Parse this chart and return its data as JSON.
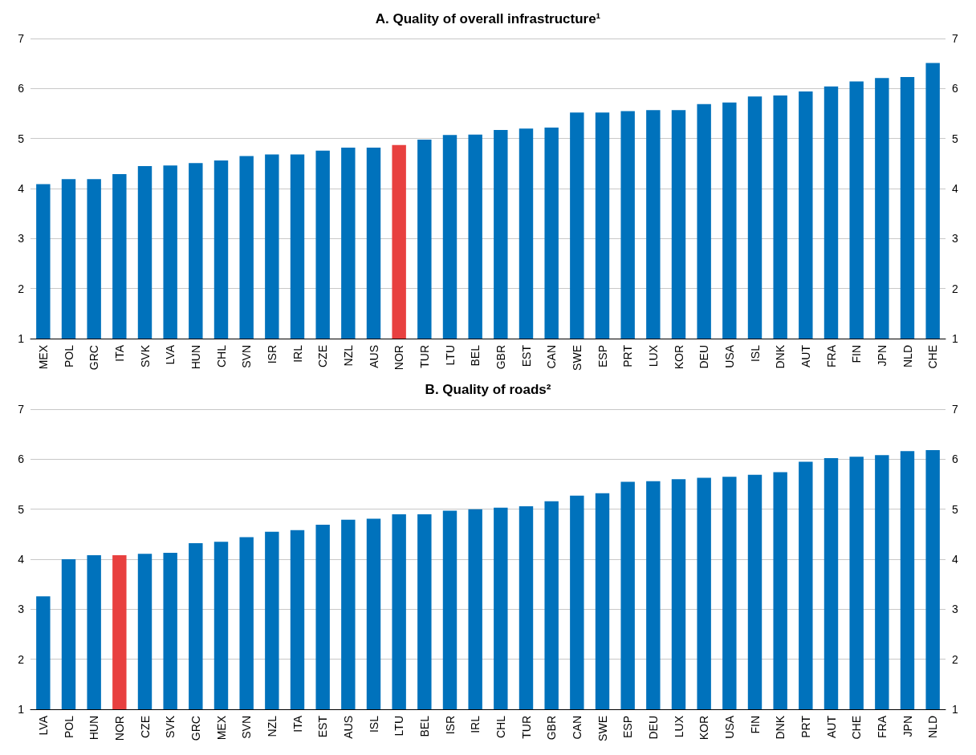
{
  "chart_data": [
    {
      "type": "bar",
      "title": "A. Quality of overall infrastructure¹",
      "categories": [
        "MEX",
        "POL",
        "GRC",
        "ITA",
        "SVK",
        "LVA",
        "HUN",
        "CHL",
        "SVN",
        "ISR",
        "IRL",
        "CZE",
        "NZL",
        "AUS",
        "NOR",
        "TUR",
        "LTU",
        "BEL",
        "GBR",
        "EST",
        "CAN",
        "SWE",
        "ESP",
        "PRT",
        "LUX",
        "KOR",
        "DEU",
        "USA",
        "ISL",
        "DNK",
        "AUT",
        "FRA",
        "FIN",
        "JPN",
        "NLD",
        "CHE"
      ],
      "values": [
        4.09,
        4.19,
        4.19,
        4.29,
        4.45,
        4.46,
        4.51,
        4.56,
        4.65,
        4.68,
        4.68,
        4.76,
        4.82,
        4.82,
        4.87,
        4.98,
        5.07,
        5.08,
        5.17,
        5.2,
        5.22,
        5.52,
        5.52,
        5.55,
        5.57,
        5.57,
        5.69,
        5.72,
        5.84,
        5.86,
        5.94,
        6.04,
        6.14,
        6.21,
        6.23,
        6.51
      ],
      "colors": [
        "#0072bc",
        "#0072bc",
        "#0072bc",
        "#0072bc",
        "#0072bc",
        "#0072bc",
        "#0072bc",
        "#0072bc",
        "#0072bc",
        "#0072bc",
        "#0072bc",
        "#0072bc",
        "#0072bc",
        "#0072bc",
        "#e8403f",
        "#0072bc",
        "#0072bc",
        "#0072bc",
        "#0072bc",
        "#0072bc",
        "#0072bc",
        "#0072bc",
        "#0072bc",
        "#0072bc",
        "#0072bc",
        "#0072bc",
        "#0072bc",
        "#0072bc",
        "#0072bc",
        "#0072bc",
        "#0072bc",
        "#0072bc",
        "#0072bc",
        "#0072bc",
        "#0072bc",
        "#0072bc"
      ],
      "ylim": [
        1,
        7
      ],
      "yticks": [
        1,
        2,
        3,
        4,
        5,
        6,
        7
      ],
      "y2lim": [
        1,
        7
      ],
      "y2ticks": [
        1,
        2,
        3,
        4,
        5,
        6,
        7
      ],
      "grid": "y"
    },
    {
      "type": "bar",
      "title": "B. Quality of roads²",
      "categories": [
        "LVA",
        "POL",
        "HUN",
        "NOR",
        "CZE",
        "SVK",
        "GRC",
        "MEX",
        "SVN",
        "NZL",
        "ITA",
        "EST",
        "AUS",
        "ISL",
        "LTU",
        "BEL",
        "ISR",
        "IRL",
        "CHL",
        "TUR",
        "GBR",
        "CAN",
        "SWE",
        "ESP",
        "DEU",
        "LUX",
        "KOR",
        "USA",
        "FIN",
        "DNK",
        "PRT",
        "AUT",
        "CHE",
        "FRA",
        "JPN",
        "NLD"
      ],
      "values": [
        3.26,
        4.0,
        4.08,
        4.08,
        4.11,
        4.13,
        4.32,
        4.35,
        4.44,
        4.55,
        4.58,
        4.69,
        4.79,
        4.81,
        4.9,
        4.9,
        4.97,
        5.0,
        5.03,
        5.06,
        5.16,
        5.27,
        5.32,
        5.55,
        5.56,
        5.6,
        5.63,
        5.65,
        5.69,
        5.74,
        5.95,
        6.02,
        6.05,
        6.08,
        6.16,
        6.18
      ],
      "colors": [
        "#0072bc",
        "#0072bc",
        "#0072bc",
        "#e8403f",
        "#0072bc",
        "#0072bc",
        "#0072bc",
        "#0072bc",
        "#0072bc",
        "#0072bc",
        "#0072bc",
        "#0072bc",
        "#0072bc",
        "#0072bc",
        "#0072bc",
        "#0072bc",
        "#0072bc",
        "#0072bc",
        "#0072bc",
        "#0072bc",
        "#0072bc",
        "#0072bc",
        "#0072bc",
        "#0072bc",
        "#0072bc",
        "#0072bc",
        "#0072bc",
        "#0072bc",
        "#0072bc",
        "#0072bc",
        "#0072bc",
        "#0072bc",
        "#0072bc",
        "#0072bc",
        "#0072bc",
        "#0072bc"
      ],
      "ylim": [
        1,
        7
      ],
      "yticks": [
        1,
        2,
        3,
        4,
        5,
        6,
        7
      ],
      "y2lim": [
        1,
        7
      ],
      "y2ticks": [
        1,
        2,
        3,
        4,
        5,
        6,
        7
      ],
      "grid": "y"
    }
  ]
}
